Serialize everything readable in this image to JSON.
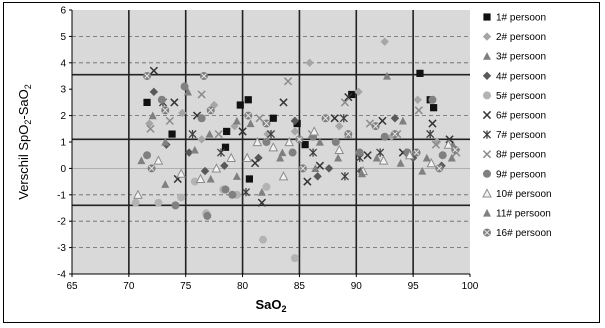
{
  "chart_data": {
    "type": "scatter",
    "xlabel": "SaO",
    "xlabel_sub": "2",
    "ylabel_parts": [
      "Verschil SpO",
      "2",
      "-SaO",
      "2"
    ],
    "xlim": [
      65,
      100
    ],
    "ylim": [
      -4,
      6
    ],
    "xticks": [
      65,
      70,
      75,
      80,
      85,
      90,
      95,
      100
    ],
    "yticks": [
      -4,
      -3,
      -2,
      -1,
      0,
      1,
      2,
      3,
      4,
      5,
      6
    ],
    "x_major_grid": [
      70,
      75,
      80,
      85,
      90,
      95
    ],
    "y_dashed_grid": [
      -3,
      -2,
      -1,
      2,
      4,
      5
    ],
    "reference_lines": [
      3.55,
      1.1,
      -1.4
    ],
    "background_color": "#d9d9d9",
    "legend_position": "right",
    "series": [
      {
        "name": "1# persoon",
        "marker": "square",
        "color": "#111111",
        "points": [
          [
            71.6,
            2.5
          ],
          [
            73.8,
            1.3
          ],
          [
            78.6,
            1.4
          ],
          [
            79.8,
            2.4
          ],
          [
            80.5,
            2.6
          ],
          [
            80.6,
            -0.4
          ],
          [
            82.7,
            1.9
          ],
          [
            84.8,
            1.7
          ],
          [
            85.5,
            0.9
          ],
          [
            89.6,
            2.8
          ],
          [
            95.6,
            3.6
          ],
          [
            96.5,
            2.6
          ],
          [
            96.8,
            2.3
          ],
          [
            78.5,
            0.8
          ]
        ]
      },
      {
        "name": "2# persoon",
        "marker": "diamond",
        "color": "#a6a6a6",
        "points": [
          [
            71.8,
            1.7
          ],
          [
            74.7,
            2.1
          ],
          [
            76.4,
            1.1
          ],
          [
            77.5,
            2.4
          ],
          [
            79.3,
            1.6
          ],
          [
            82.2,
            1.3
          ],
          [
            85.9,
            4.0
          ],
          [
            88.5,
            1.6
          ],
          [
            90.2,
            2.9
          ],
          [
            92.5,
            4.8
          ],
          [
            93.1,
            1.2
          ],
          [
            95.4,
            2.6
          ],
          [
            97.1,
            1.0
          ],
          [
            84.6,
            1.4
          ]
        ]
      },
      {
        "name": "3# persoon",
        "marker": "triangle",
        "color": "#7f7f7f",
        "points": [
          [
            72.1,
            2.0
          ],
          [
            73.2,
            -0.6
          ],
          [
            75.2,
            2.9
          ],
          [
            77.1,
            1.3
          ],
          [
            80.7,
            1.7
          ],
          [
            83.5,
            0.6
          ],
          [
            86.8,
            1.0
          ],
          [
            89.3,
            1.3
          ],
          [
            92.7,
            3.5
          ],
          [
            94.1,
            1.8
          ],
          [
            96.2,
            0.4
          ],
          [
            98.5,
            0.9
          ],
          [
            79.5,
            -0.3
          ]
        ]
      },
      {
        "name": "4# persoon",
        "marker": "diamond",
        "color": "#595959",
        "points": [
          [
            72.2,
            2.9
          ],
          [
            73.3,
            0.9
          ],
          [
            75.3,
            0.6
          ],
          [
            78.4,
            0.1
          ],
          [
            81.4,
            0.4
          ],
          [
            84.6,
            1.8
          ],
          [
            86.6,
            -0.3
          ],
          [
            87.6,
            0.0
          ],
          [
            90.4,
            -0.1
          ],
          [
            93.4,
            1.9
          ],
          [
            95.0,
            0.4
          ],
          [
            97.5,
            0.1
          ],
          [
            76.7,
            -0.1
          ]
        ]
      },
      {
        "name": "5# persoon",
        "marker": "circle",
        "color": "#b3b3b3",
        "points": [
          [
            70.6,
            -1.3
          ],
          [
            72.6,
            -1.3
          ],
          [
            74.6,
            -1.1
          ],
          [
            76.8,
            -1.7
          ],
          [
            79.5,
            -1.0
          ],
          [
            81.8,
            -2.7
          ],
          [
            84.6,
            -3.4
          ],
          [
            82.1,
            -0.7
          ],
          [
            75.8,
            -0.5
          ],
          [
            78.3,
            -0.8
          ]
        ]
      },
      {
        "name": "6# persoon",
        "marker": "x",
        "color": "#333333",
        "points": [
          [
            72.2,
            3.7
          ],
          [
            74.0,
            2.5
          ],
          [
            74.3,
            -0.4
          ],
          [
            76.0,
            2.0
          ],
          [
            80.0,
            1.4
          ],
          [
            81.1,
            0.2
          ],
          [
            81.7,
            -1.3
          ],
          [
            83.6,
            2.5
          ],
          [
            85.7,
            -0.5
          ],
          [
            88.1,
            1.9
          ],
          [
            89.3,
            2.7
          ],
          [
            91.0,
            0.5
          ],
          [
            92.3,
            1.8
          ],
          [
            94.1,
            0.6
          ],
          [
            96.7,
            1.7
          ],
          [
            98.2,
            1.1
          ],
          [
            86.8,
            0.1
          ]
        ]
      },
      {
        "name": "7# persoon",
        "marker": "asterisk",
        "color": "#404040",
        "points": [
          [
            73.0,
            2.5
          ],
          [
            75.6,
            1.3
          ],
          [
            78.1,
            0.6
          ],
          [
            80.3,
            -0.9
          ],
          [
            82.5,
            1.3
          ],
          [
            86.2,
            0.6
          ],
          [
            88.9,
            1.9
          ],
          [
            90.3,
            0.4
          ],
          [
            92.1,
            0.6
          ],
          [
            89.0,
            -0.3
          ],
          [
            96.5,
            1.3
          ]
        ]
      },
      {
        "name": "8# persoon",
        "marker": "x",
        "color": "#8c8c8c",
        "points": [
          [
            71.9,
            1.5
          ],
          [
            73.6,
            1.8
          ],
          [
            76.4,
            2.8
          ],
          [
            77.9,
            1.3
          ],
          [
            81.5,
            1.9
          ],
          [
            84.0,
            3.3
          ],
          [
            86.1,
            1.3
          ],
          [
            89.0,
            2.5
          ],
          [
            91.2,
            1.7
          ],
          [
            93.6,
            1.3
          ],
          [
            95.5,
            2.2
          ],
          [
            97.0,
            0.9
          ],
          [
            98.8,
            0.6
          ]
        ]
      },
      {
        "name": "9# persoon",
        "marker": "circle",
        "color": "#808080",
        "points": [
          [
            71.6,
            0.5
          ],
          [
            72.9,
            2.6
          ],
          [
            74.9,
            3.1
          ],
          [
            76.4,
            1.9
          ],
          [
            78.5,
            -0.8
          ],
          [
            79.1,
            -1.0
          ],
          [
            82.1,
            1.0
          ],
          [
            84.4,
            0.6
          ],
          [
            86.2,
            1.2
          ],
          [
            88.2,
            1.0
          ],
          [
            90.3,
            0.6
          ],
          [
            92.5,
            1.2
          ],
          [
            94.5,
            0.6
          ],
          [
            96.7,
            2.6
          ],
          [
            97.6,
            0.5
          ],
          [
            74.1,
            -1.4
          ],
          [
            76.9,
            -1.8
          ]
        ]
      },
      {
        "name": "10# persoon",
        "marker": "triangle-open",
        "color": "#8c8c8c",
        "points": [
          [
            70.8,
            -1.0
          ],
          [
            72.6,
            0.3
          ],
          [
            74.6,
            -0.2
          ],
          [
            76.3,
            -0.4
          ],
          [
            77.7,
            0.0
          ],
          [
            79.0,
            0.4
          ],
          [
            80.4,
            0.4
          ],
          [
            82.7,
            0.8
          ],
          [
            84.1,
            1.0
          ],
          [
            86.3,
            1.4
          ],
          [
            88.5,
            0.7
          ],
          [
            90.6,
            -0.1
          ],
          [
            92.4,
            0.3
          ],
          [
            94.7,
            0.5
          ],
          [
            96.6,
            0.2
          ],
          [
            98.1,
            0.9
          ],
          [
            83.6,
            -0.3
          ],
          [
            81.3,
            1.0
          ]
        ]
      },
      {
        "name": "11# persoon",
        "marker": "triangle",
        "color": "#808080",
        "points": [
          [
            71.1,
            0.3
          ],
          [
            73.2,
            1.0
          ],
          [
            75.8,
            0.7
          ],
          [
            77.2,
            -0.4
          ],
          [
            79.5,
            1.8
          ],
          [
            81.7,
            -0.9
          ],
          [
            83.3,
            0.4
          ],
          [
            86.4,
            0.0
          ],
          [
            88.4,
            0.4
          ],
          [
            90.5,
            -0.2
          ],
          [
            91.8,
            0.4
          ],
          [
            93.9,
            0.2
          ],
          [
            95.8,
            -0.1
          ],
          [
            98.4,
            0.4
          ]
        ]
      },
      {
        "name": "16# persoon",
        "marker": "circle-x",
        "color": "#7f7f7f",
        "points": [
          [
            71.6,
            3.5
          ],
          [
            73.2,
            2.2
          ],
          [
            76.6,
            3.5
          ],
          [
            77.2,
            2.2
          ],
          [
            80.5,
            2.0
          ],
          [
            82.1,
            1.7
          ],
          [
            85.0,
            1.1
          ],
          [
            87.3,
            1.9
          ],
          [
            89.3,
            1.3
          ],
          [
            91.7,
            1.6
          ],
          [
            93.4,
            1.3
          ],
          [
            95.3,
            0.6
          ],
          [
            97.3,
            0.0
          ],
          [
            98.7,
            0.7
          ],
          [
            72.0,
            0.0
          ],
          [
            85.3,
            0.0
          ]
        ]
      }
    ]
  }
}
